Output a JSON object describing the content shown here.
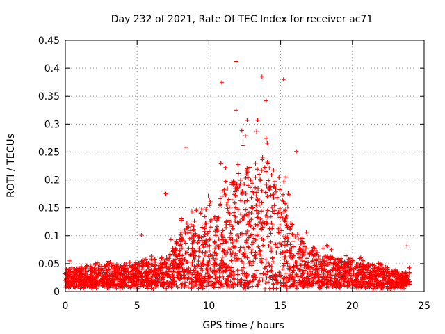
{
  "chart_data": {
    "type": "scatter",
    "title": "Day 232 of 2021, Rate Of TEC Index for receiver ac71",
    "xlabel": "GPS time / hours",
    "ylabel": "ROTI / TECUs",
    "xlim": [
      0,
      25
    ],
    "ylim": [
      0,
      0.45
    ],
    "xticks": [
      0,
      5,
      10,
      15,
      20,
      25
    ],
    "xtick_labels": [
      "0",
      "5",
      "10",
      "15",
      "20",
      "25"
    ],
    "yticks": [
      0,
      0.05,
      0.1,
      0.15,
      0.2,
      0.25,
      0.3,
      0.35,
      0.4,
      0.45
    ],
    "ytick_labels": [
      "0",
      "0.05",
      "0.1",
      "0.15",
      "0.2",
      "0.25",
      "0.3",
      "0.35",
      "0.4",
      "0.45"
    ],
    "grid": true,
    "marker": "+",
    "color": "#ff0000",
    "series": [
      {
        "name": "ROTI",
        "x_range": [
          0,
          24
        ],
        "envelope_hours": [
          0,
          2,
          4,
          6,
          7,
          8,
          8.5,
          9,
          10,
          11,
          12,
          13,
          13.5,
          14,
          15,
          16,
          17,
          18,
          19,
          20,
          21,
          22,
          23,
          24
        ],
        "typical_upper": [
          0.03,
          0.035,
          0.04,
          0.045,
          0.05,
          0.09,
          0.12,
          0.1,
          0.12,
          0.17,
          0.2,
          0.22,
          0.24,
          0.23,
          0.18,
          0.1,
          0.07,
          0.06,
          0.05,
          0.045,
          0.04,
          0.035,
          0.03,
          0.03
        ],
        "notable_points": [
          {
            "x": 11.9,
            "y": 0.412
          },
          {
            "x": 13.7,
            "y": 0.385
          },
          {
            "x": 15.2,
            "y": 0.38
          },
          {
            "x": 10.9,
            "y": 0.375
          },
          {
            "x": 14.0,
            "y": 0.342
          },
          {
            "x": 11.9,
            "y": 0.325
          },
          {
            "x": 8.4,
            "y": 0.258
          },
          {
            "x": 16.1,
            "y": 0.251
          },
          {
            "x": 7.0,
            "y": 0.175
          },
          {
            "x": 5.3,
            "y": 0.101
          },
          {
            "x": 23.8,
            "y": 0.082
          },
          {
            "x": 0.3,
            "y": 0.055
          }
        ]
      }
    ]
  }
}
